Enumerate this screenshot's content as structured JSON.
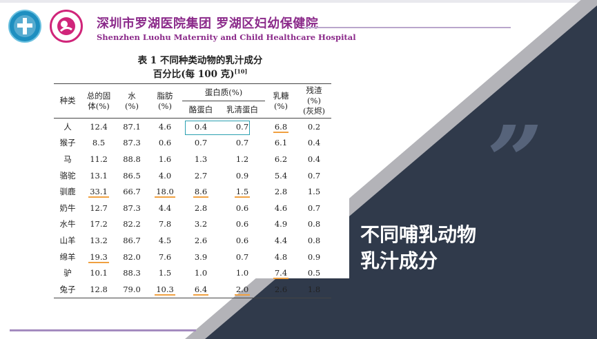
{
  "header": {
    "hospital_cn": "深圳市罗湖医院集团  罗湖区妇幼保健院",
    "hospital_en": "Shenzhen Luohu Maternity and Child Healthcare Hospital",
    "colors": {
      "brand": "#8b2a8a",
      "dark_panel": "#303a4b",
      "accent_underline": "#f0a040",
      "highlight_box": "#2a9fb0"
    }
  },
  "table": {
    "title": "表 1   不同种类动物的乳汁成分",
    "subtitle": "百分比(每 100 克)",
    "subtitle_ref": "[10]",
    "headers": {
      "species": "种类",
      "solids_l1": "总的固",
      "solids_l2": "体(%)",
      "water_l1": "水",
      "water_l2": "(%)",
      "fat_l1": "脂肪",
      "fat_l2": "(%)",
      "protein": "蛋白质(%)",
      "casein": "酪蛋白",
      "whey": "乳清蛋白",
      "lactose_l1": "乳糖",
      "lactose_l2": "(%)",
      "ash_l1": "残渣",
      "ash_l2": "(%)",
      "ash_l3": "(灰烬)"
    },
    "rows": [
      {
        "species": "人",
        "solids": "12.4",
        "water": "87.1",
        "fat": "4.6",
        "casein": "0.4",
        "whey": "0.7",
        "lactose": "6.8",
        "ash": "0.2"
      },
      {
        "species": "猴子",
        "solids": "8.5",
        "water": "87.3",
        "fat": "0.6",
        "casein": "0.7",
        "whey": "0.7",
        "lactose": "6.1",
        "ash": "0.4"
      },
      {
        "species": "马",
        "solids": "11.2",
        "water": "88.8",
        "fat": "1.6",
        "casein": "1.3",
        "whey": "1.2",
        "lactose": "6.2",
        "ash": "0.4"
      },
      {
        "species": "骆驼",
        "solids": "13.1",
        "water": "86.5",
        "fat": "4.0",
        "casein": "2.7",
        "whey": "0.9",
        "lactose": "5.4",
        "ash": "0.7"
      },
      {
        "species": "驯鹿",
        "solids": "33.1",
        "water": "66.7",
        "fat": "18.0",
        "casein": "8.6",
        "whey": "1.5",
        "lactose": "2.8",
        "ash": "1.5"
      },
      {
        "species": "奶牛",
        "solids": "12.7",
        "water": "87.3",
        "fat": "4.4",
        "casein": "2.8",
        "whey": "0.6",
        "lactose": "4.6",
        "ash": "0.7"
      },
      {
        "species": "水牛",
        "solids": "17.2",
        "water": "82.2",
        "fat": "7.8",
        "casein": "3.2",
        "whey": "0.6",
        "lactose": "4.9",
        "ash": "0.8"
      },
      {
        "species": "山羊",
        "solids": "13.2",
        "water": "86.7",
        "fat": "4.5",
        "casein": "2.6",
        "whey": "0.6",
        "lactose": "4.4",
        "ash": "0.8"
      },
      {
        "species": "绵羊",
        "solids": "19.3",
        "water": "82.0",
        "fat": "7.6",
        "casein": "3.9",
        "whey": "0.7",
        "lactose": "4.8",
        "ash": "0.9"
      },
      {
        "species": "驴",
        "solids": "10.1",
        "water": "88.3",
        "fat": "1.5",
        "casein": "1.0",
        "whey": "1.0",
        "lactose": "7.4",
        "ash": "0.5"
      },
      {
        "species": "兔子",
        "solids": "12.8",
        "water": "79.0",
        "fat": "10.3",
        "casein": "6.4",
        "whey": "2.0",
        "lactose": "2.6",
        "ash": "1.8"
      }
    ],
    "underlined": [
      [
        0,
        "lactose"
      ],
      [
        4,
        "solids"
      ],
      [
        4,
        "fat"
      ],
      [
        4,
        "casein"
      ],
      [
        4,
        "whey"
      ],
      [
        8,
        "solids"
      ],
      [
        9,
        "lactose"
      ],
      [
        10,
        "fat"
      ],
      [
        10,
        "casein"
      ],
      [
        10,
        "whey"
      ]
    ]
  },
  "slide": {
    "title_line1": "不同哺乳动物",
    "title_line2": "乳汁成分",
    "quote_glyph": "”"
  }
}
